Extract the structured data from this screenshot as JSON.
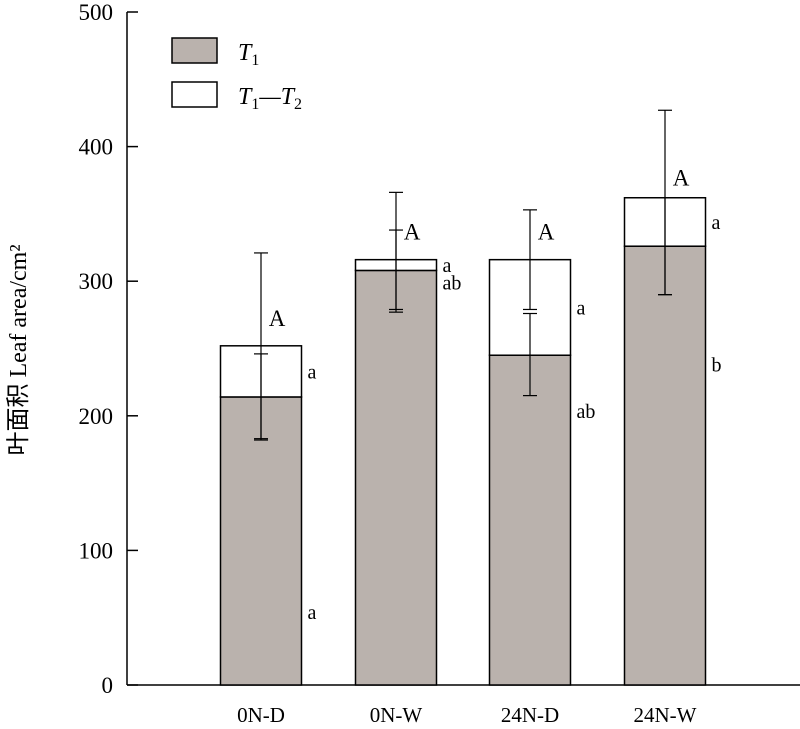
{
  "chart_data": {
    "type": "bar",
    "stacked": true,
    "categories": [
      "0N-D",
      "0N-W",
      "24N-D",
      "24N-W"
    ],
    "series": [
      {
        "name": "T1",
        "values": [
          214,
          308,
          245,
          326
        ],
        "error_low": [
          182,
          277,
          215,
          290
        ],
        "error_high": [
          246,
          338,
          276,
          362
        ],
        "letters": [
          "a",
          "ab",
          "ab",
          "b"
        ],
        "color": "#bab2ad"
      },
      {
        "name": "T1—T2",
        "values": [
          38,
          8,
          71,
          36
        ],
        "totals": [
          252,
          316,
          316,
          362
        ],
        "error_low": [
          183,
          279,
          279,
          290
        ],
        "error_high": [
          321,
          366,
          353,
          427
        ],
        "letters": [
          "a",
          "a",
          "a",
          "a"
        ],
        "total_letters": [
          "A",
          "A",
          "A",
          "A"
        ],
        "color": "#ffffff"
      }
    ],
    "legend": [
      {
        "base": "T",
        "sub": "1",
        "rest": ""
      },
      {
        "base": "T",
        "sub": "1",
        "rest": "—T",
        "sub2": "2"
      }
    ],
    "legend_position": "top-left",
    "ylabel": "叶面积 Leaf area/cm²",
    "xlabel": "",
    "ylim": [
      0,
      500
    ],
    "yticks": [
      0,
      100,
      200,
      300,
      400,
      500
    ],
    "grid": false
  }
}
